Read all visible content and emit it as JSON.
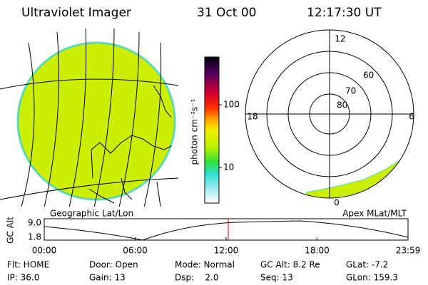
{
  "header": {
    "title": "Ultraviolet Imager",
    "date": "31 Oct 00",
    "time": "12:17:30 UT"
  },
  "left_panel": {
    "label": "Geographic Lat/Lon"
  },
  "colorbar": {
    "label": "photon cm⁻²s⁻¹",
    "ticks": [
      "100",
      "10"
    ]
  },
  "right_panel": {
    "label": "Apex MLat/MLT",
    "mlt_labels": [
      "12",
      "18",
      "6",
      "0"
    ],
    "lat_labels": [
      "80",
      "70",
      "60"
    ]
  },
  "altitude_plot": {
    "axis_label": "GC Alt",
    "yticks": [
      "9.0",
      "1.8"
    ],
    "xticks": [
      "00:00",
      "06:00",
      "12:00",
      "18:00",
      "23:59"
    ]
  },
  "info": {
    "rows": [
      [
        "Flt: HOME",
        "Door: Open",
        "Mode: Normal",
        "GC Alt: 8.2 Re",
        "GLat: -7.2"
      ],
      [
        "IP: 36.0",
        "Gain: 13",
        "Dsp:    2.0",
        "Seq: 13",
        "GLon: 159.3"
      ]
    ]
  }
}
